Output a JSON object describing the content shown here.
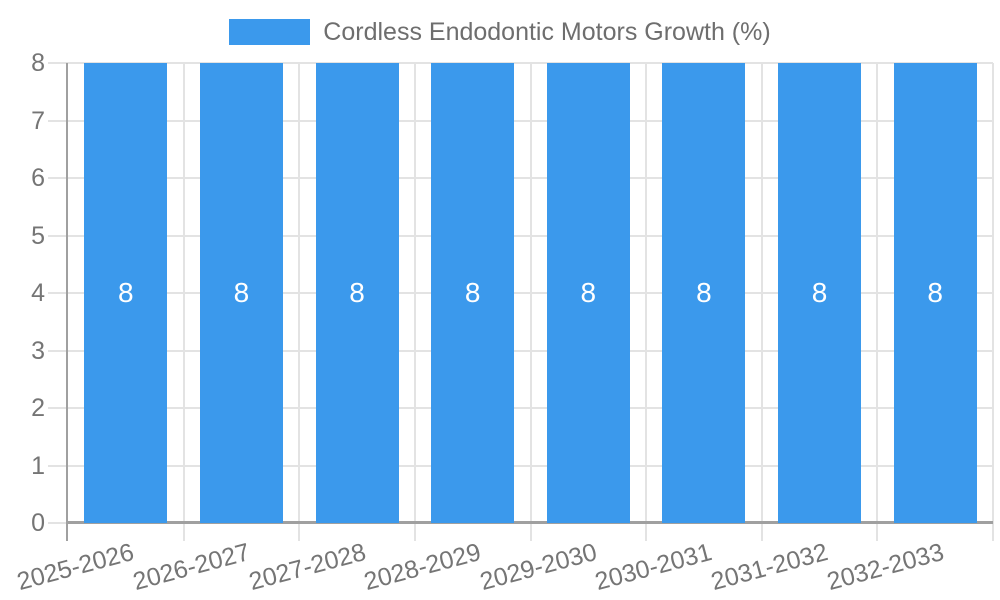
{
  "legend": {
    "label": "Cordless Endodontic Motors Growth (%)"
  },
  "colors": {
    "bar": "#3b99ec",
    "bar_label": "#ffffff",
    "axis_text": "#757575",
    "legend_text": "#6e6e6e",
    "grid": "#e3e3e3",
    "axis_line": "#a0a0a0",
    "background": "#ffffff"
  },
  "chart_data": {
    "type": "bar",
    "title": "Cordless Endodontic Motors Growth (%)",
    "categories": [
      "2025-2026",
      "2026-2027",
      "2027-2028",
      "2028-2029",
      "2029-2030",
      "2030-2031",
      "2031-2032",
      "2032-2033"
    ],
    "series": [
      {
        "name": "Cordless Endodontic Motors Growth (%)",
        "color": "#3b99ec",
        "values": [
          8,
          8,
          8,
          8,
          8,
          8,
          8,
          8
        ]
      }
    ],
    "data_labels": [
      "8",
      "8",
      "8",
      "8",
      "8",
      "8",
      "8",
      "8"
    ],
    "xlabel": "",
    "ylabel": "",
    "ylim": [
      0,
      8
    ],
    "yticks": [
      0,
      1,
      2,
      3,
      4,
      5,
      6,
      7,
      8
    ],
    "grid": true,
    "legend_position": "top",
    "x_tick_rotation_deg": -15
  }
}
